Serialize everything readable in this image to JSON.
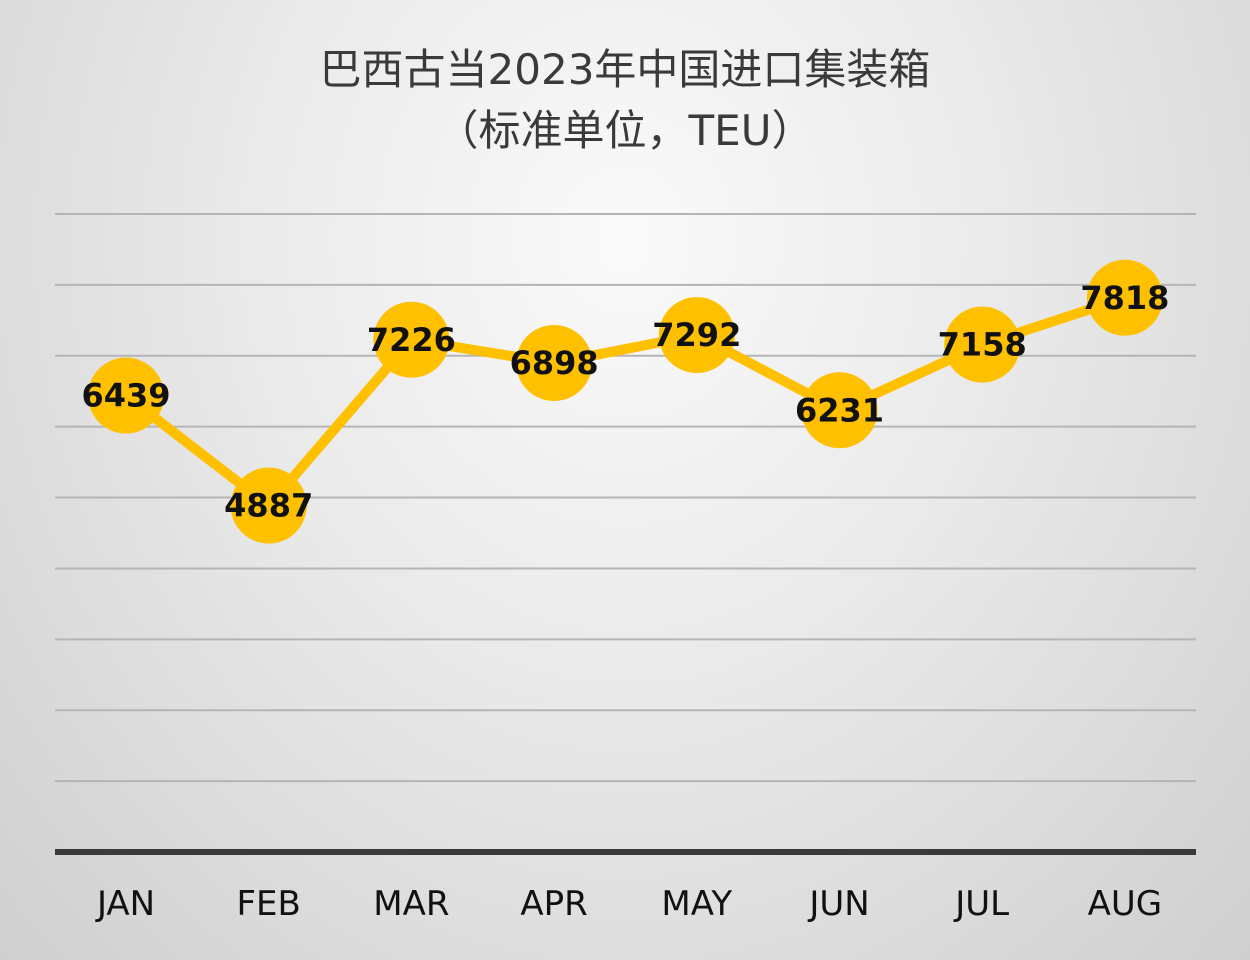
{
  "chart_data": {
    "type": "line",
    "title_line1": "巴西古当2023年中国进口集装箱",
    "title_line2": "（标准单位，TEU）",
    "categories": [
      "JAN",
      "FEB",
      "MAR",
      "APR",
      "MAY",
      "JUN",
      "JUL",
      "AUG"
    ],
    "values": [
      6439,
      4887,
      7226,
      6898,
      7292,
      6231,
      7158,
      7818
    ],
    "data_labels": [
      "6439",
      "4887",
      "7226",
      "6898",
      "7292",
      "6231",
      "7158",
      "7818"
    ],
    "ylim": [
      0,
      9000
    ],
    "grid": true,
    "legend": "none",
    "line_color": "#ffc000",
    "marker_color": "#ffc000",
    "gridline_color": "#b5b5b5",
    "axis_color": "#3a3a3a"
  }
}
